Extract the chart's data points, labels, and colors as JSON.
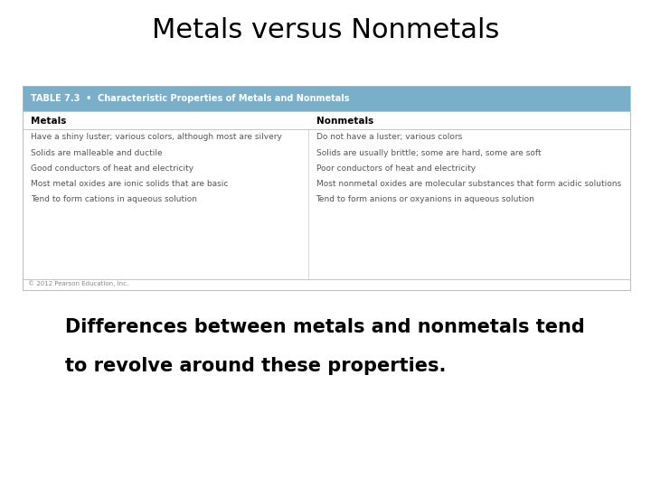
{
  "title": "Metals versus Nonmetals",
  "title_fontsize": 22,
  "table_header": "TABLE 7.3  •  Characteristic Properties of Metals and Nonmetals",
  "table_header_bg": "#7aafca",
  "table_header_fontsize": 7,
  "col1_header": "Metals",
  "col2_header": "Nonmetals",
  "col_header_fontsize": 7.5,
  "metals_properties": [
    "Have a shiny luster; various colors, although most are silvery",
    "Solids are malleable and ductile",
    "Good conductors of heat and electricity",
    "Most metal oxides are ionic solids that are basic",
    "Tend to form cations in aqueous solution"
  ],
  "nonmetals_properties": [
    "Do not have a luster; various colors",
    "Solids are usually brittle; some are hard, some are soft",
    "Poor conductors of heat and electricity",
    "Most nonmetal oxides are molecular substances that form acidic solutions",
    "Tend to form anions or oxyanions in aqueous solution"
  ],
  "property_fontsize": 6.5,
  "copyright_text": "© 2012 Pearson Education, Inc.",
  "copyright_fontsize": 5,
  "body_text_line1": "Differences between metals and nonmetals tend",
  "body_text_line2": "to revolve around these properties.",
  "body_fontsize": 15,
  "bg_color": "#ffffff",
  "text_color": "#000000",
  "table_border_color": "#bbbbbb",
  "table_header_color": "#ffffff",
  "property_color": "#555555"
}
